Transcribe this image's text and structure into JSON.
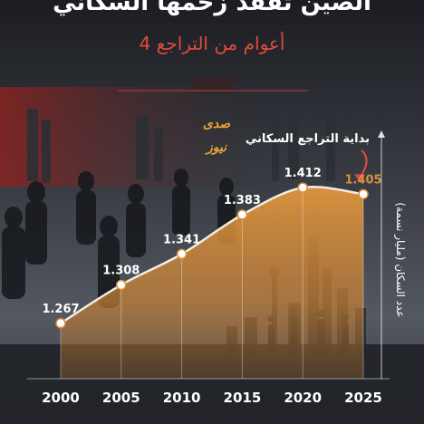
{
  "header": {
    "title": "الصين تفقد زخمها السكاني",
    "subtitle": "4 أعوام من التراجع"
  },
  "brand": {
    "logo_text": "صدى نيوز"
  },
  "annotation": {
    "text": "بداية التراجع السكاني"
  },
  "colors": {
    "background": "#1f2126",
    "accent_red": "#e24a3e",
    "area_fill": "#d98f3a",
    "line": "#f2ece2",
    "marker": "#ffffff",
    "arrow": "#e24a3e"
  },
  "chart_data": {
    "type": "area",
    "x": [
      "2000",
      "2005",
      "2010",
      "2015",
      "2020",
      "2025"
    ],
    "values": [
      1.267,
      1.308,
      1.341,
      1.383,
      1.412,
      1.405
    ],
    "value_labels": [
      "1.267",
      "1.308",
      "1.341",
      "1.383",
      "1.412",
      "1.405"
    ],
    "ylabel": "عدد السكان (مليار نسمة)",
    "xlabel": "",
    "ylim": [
      1.26,
      1.415
    ],
    "grid": false,
    "legend": "none"
  }
}
